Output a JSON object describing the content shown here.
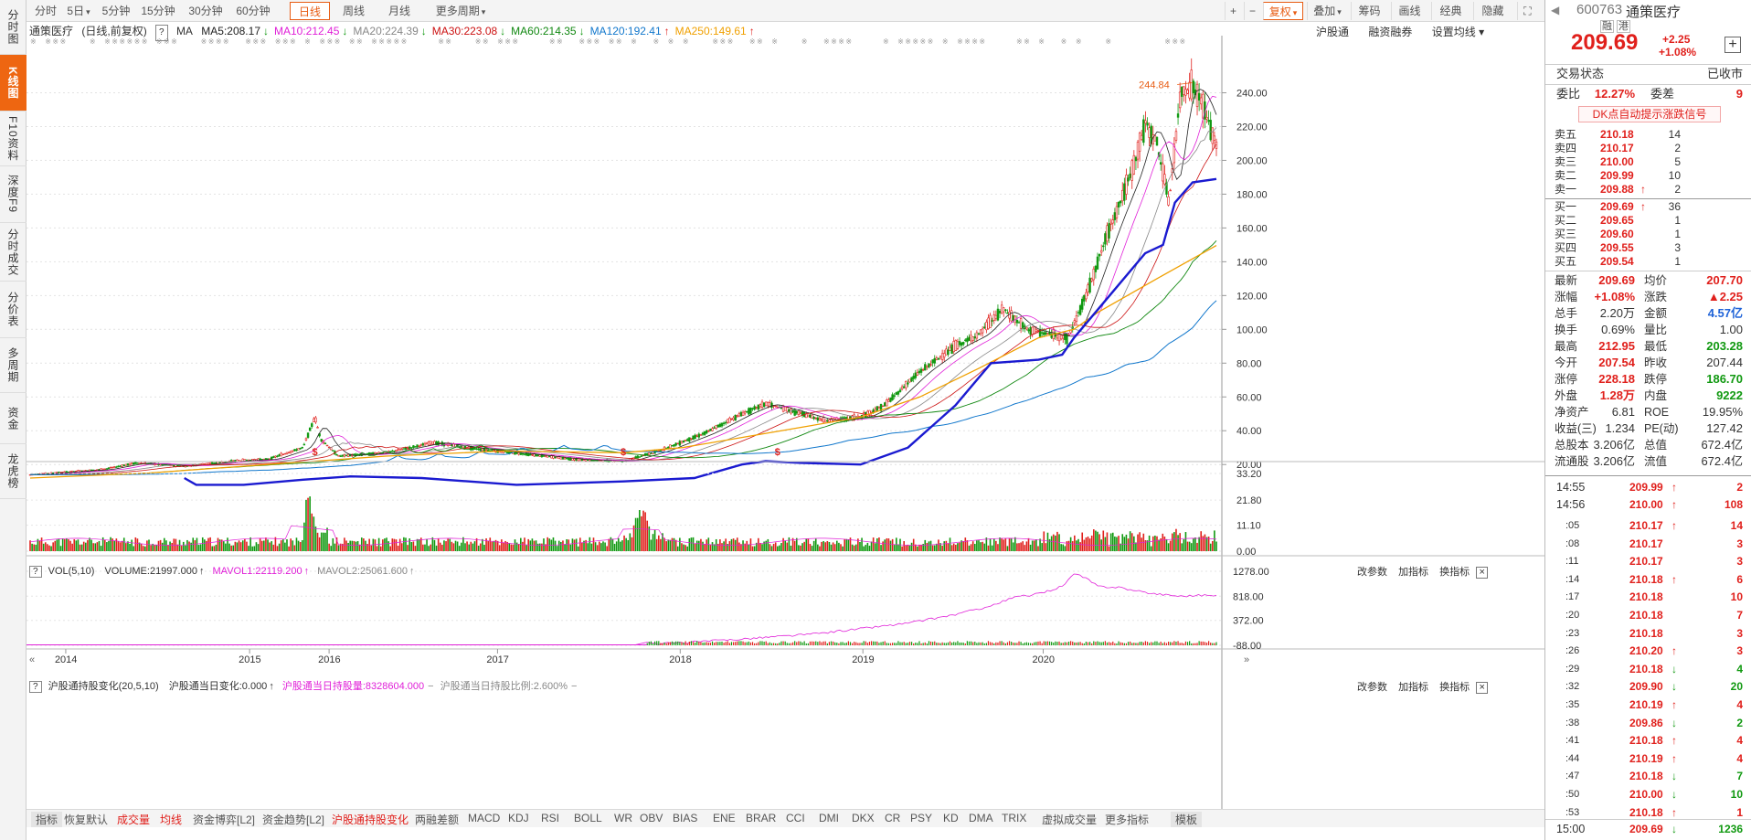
{
  "sidebar": {
    "items": [
      "分时图",
      "K线图",
      "F10资料",
      "深度F9",
      "分时成交",
      "分价表",
      "多周期",
      "资金",
      "龙虎榜"
    ],
    "active_index": 1
  },
  "toolbar": {
    "periods": [
      "分时",
      "5日",
      "5分钟",
      "15分钟",
      "30分钟",
      "60分钟",
      "日线",
      "周线",
      "月线",
      "更多周期"
    ],
    "active_period": "日线",
    "right": [
      "+",
      "−",
      "复权",
      "叠加",
      "筹码",
      "画线",
      "经典",
      "隐藏"
    ]
  },
  "chart_header": {
    "title": "通策医疗",
    "subtitle": "(日线,前复权)",
    "ma_label": "MA",
    "ma": [
      {
        "label": "MA5:208.17",
        "arrow": "down",
        "color": "#222222"
      },
      {
        "label": "MA10:212.45",
        "arrow": "down",
        "color": "#e020d8"
      },
      {
        "label": "MA20:224.39",
        "arrow": "down",
        "color": "#888888"
      },
      {
        "label": "MA30:223.08",
        "arrow": "down",
        "color": "#cc1111"
      },
      {
        "label": "MA60:214.35",
        "arrow": "down",
        "color": "#118811"
      },
      {
        "label": "MA120:192.41",
        "arrow": "up",
        "color": "#1177cc"
      },
      {
        "label": "MA250:149.61",
        "arrow": "up",
        "color": "#f0a000"
      }
    ],
    "links": [
      "沪股通",
      "融资融券",
      "设置均线"
    ]
  },
  "price_axis": [
    "240.00",
    "220.00",
    "200.00",
    "180.00",
    "160.00",
    "140.00",
    "120.00",
    "100.00",
    "80.00",
    "60.00",
    "40.00",
    "20.00"
  ],
  "max_label": "244.84",
  "vol_panel": {
    "title": "VOL(5,10)",
    "v1": "VOLUME:21997.000",
    "v2": "MAVOL1:22119.200",
    "v3": "MAVOL2:25061.600",
    "tools": [
      "改参数",
      "加指标",
      "换指标"
    ],
    "axis": [
      "33.20",
      "21.80",
      "11.10",
      "0.00"
    ]
  },
  "hk_panel": {
    "title": "沪股通持股变化(20,5,10)",
    "v1": "沪股通当日变化:0.000",
    "v2": "沪股通当日持股量:8328604.000",
    "v3": "沪股通当日持股比例:2.600%",
    "tools": [
      "改参数",
      "加指标",
      "换指标"
    ],
    "axis": [
      "1278.00",
      "818.00",
      "372.00",
      "-88.00"
    ]
  },
  "x_axis": [
    "2014",
    "2015",
    "2016",
    "2017",
    "2018",
    "2019",
    "2020"
  ],
  "bottom_tabs": [
    "指标",
    "恢复默认",
    "成交量",
    "均线",
    "资金博弈[L2]",
    "资金趋势[L2]",
    "沪股通持股变化",
    "两融差额",
    "MACD",
    "KDJ",
    "RSI",
    "BOLL",
    "WR",
    "OBV",
    "BIAS",
    "ENE",
    "BRAR",
    "CCI",
    "DMI",
    "DKX",
    "CR",
    "PSY",
    "KD",
    "DMA",
    "TRIX",
    "虚拟成交量",
    "更多指标",
    "模板"
  ],
  "quote": {
    "code": "600763",
    "name": "通策医疗",
    "badges": [
      "融",
      "港"
    ],
    "price": "209.69",
    "change": "+2.25",
    "pct": "+1.08%",
    "status_label": "交易状态",
    "status": "已收市",
    "weibi_label": "委比",
    "weibi": "12.27%",
    "weicha_label": "委差",
    "weicha": "9",
    "dk_link": "DK点自动提示涨跌信号",
    "sells": [
      {
        "label": "卖五",
        "price": "210.18",
        "vol": "14",
        "arrow": ""
      },
      {
        "label": "卖四",
        "price": "210.17",
        "vol": "2",
        "arrow": ""
      },
      {
        "label": "卖三",
        "price": "210.00",
        "vol": "5",
        "arrow": ""
      },
      {
        "label": "卖二",
        "price": "209.99",
        "vol": "10",
        "arrow": ""
      },
      {
        "label": "卖一",
        "price": "209.88",
        "vol": "2",
        "arrow": "↑"
      }
    ],
    "buys": [
      {
        "label": "买一",
        "price": "209.69",
        "vol": "36",
        "arrow": "↑"
      },
      {
        "label": "买二",
        "price": "209.65",
        "vol": "1",
        "arrow": ""
      },
      {
        "label": "买三",
        "price": "209.60",
        "vol": "1",
        "arrow": ""
      },
      {
        "label": "买四",
        "price": "209.55",
        "vol": "3",
        "arrow": ""
      },
      {
        "label": "买五",
        "price": "209.54",
        "vol": "1",
        "arrow": ""
      }
    ],
    "stats": [
      {
        "l1": "最新",
        "v1": "209.69",
        "c1": "red",
        "l2": "均价",
        "v2": "207.70",
        "c2": "red"
      },
      {
        "l1": "涨幅",
        "v1": "+1.08%",
        "c1": "red",
        "l2": "涨跌",
        "v2": "▲2.25",
        "c2": "red"
      },
      {
        "l1": "总手",
        "v1": "2.20万",
        "c1": "",
        "l2": "金额",
        "v2": "4.57亿",
        "c2": "blue"
      },
      {
        "l1": "换手",
        "v1": "0.69%",
        "c1": "",
        "l2": "量比",
        "v2": "1.00",
        "c2": ""
      },
      {
        "l1": "最高",
        "v1": "212.95",
        "c1": "red",
        "l2": "最低",
        "v2": "203.28",
        "c2": "green"
      },
      {
        "l1": "今开",
        "v1": "207.54",
        "c1": "red",
        "l2": "昨收",
        "v2": "207.44",
        "c2": ""
      },
      {
        "l1": "涨停",
        "v1": "228.18",
        "c1": "red",
        "l2": "跌停",
        "v2": "186.70",
        "c2": "green"
      },
      {
        "l1": "外盘",
        "v1": "1.28万",
        "c1": "red",
        "l2": "内盘",
        "v2": "9222",
        "c2": "green"
      },
      {
        "l1": "净资产",
        "v1": "6.81",
        "c1": "",
        "l2": "ROE",
        "v2": "19.95%",
        "c2": ""
      },
      {
        "l1": "收益(三)",
        "v1": "1.234",
        "c1": "",
        "l2": "PE(动)",
        "v2": "127.42",
        "c2": ""
      },
      {
        "l1": "总股本",
        "v1": "3.206亿",
        "c1": "",
        "l2": "总值",
        "v2": "672.4亿",
        "c2": ""
      },
      {
        "l1": "流通股",
        "v1": "3.206亿",
        "c1": "",
        "l2": "流值",
        "v2": "672.4亿",
        "c2": ""
      }
    ],
    "trades": [
      {
        "t": "14:55",
        "p": "209.99",
        "a": "↑",
        "q": "2",
        "qc": "red"
      },
      {
        "t": "14:56",
        "p": "210.00",
        "a": "↑",
        "q": "108",
        "qc": "red"
      },
      {
        "t": ":05",
        "p": "210.17",
        "a": "↑",
        "q": "14",
        "qc": "red"
      },
      {
        "t": ":08",
        "p": "210.17",
        "a": "",
        "q": "3",
        "qc": "red"
      },
      {
        "t": ":11",
        "p": "210.17",
        "a": "",
        "q": "3",
        "qc": "red"
      },
      {
        "t": ":14",
        "p": "210.18",
        "a": "↑",
        "q": "6",
        "qc": "red"
      },
      {
        "t": ":17",
        "p": "210.18",
        "a": "",
        "q": "10",
        "qc": "red"
      },
      {
        "t": ":20",
        "p": "210.18",
        "a": "",
        "q": "7",
        "qc": "red"
      },
      {
        "t": ":23",
        "p": "210.18",
        "a": "",
        "q": "3",
        "qc": "red"
      },
      {
        "t": ":26",
        "p": "210.20",
        "a": "↑",
        "q": "3",
        "qc": "red"
      },
      {
        "t": ":29",
        "p": "210.18",
        "a": "↓",
        "q": "4",
        "qc": "green"
      },
      {
        "t": ":32",
        "p": "209.90",
        "a": "↓",
        "q": "20",
        "qc": "green"
      },
      {
        "t": ":35",
        "p": "210.19",
        "a": "↑",
        "q": "4",
        "qc": "red"
      },
      {
        "t": ":38",
        "p": "209.86",
        "a": "↓",
        "q": "2",
        "qc": "green"
      },
      {
        "t": ":41",
        "p": "210.18",
        "a": "↑",
        "q": "4",
        "qc": "red"
      },
      {
        "t": ":44",
        "p": "210.19",
        "a": "↑",
        "q": "4",
        "qc": "red"
      },
      {
        "t": ":47",
        "p": "210.18",
        "a": "↓",
        "q": "7",
        "qc": "green"
      },
      {
        "t": ":50",
        "p": "210.00",
        "a": "↓",
        "q": "10",
        "qc": "green"
      },
      {
        "t": ":53",
        "p": "210.18",
        "a": "↑",
        "q": "1",
        "qc": "red"
      },
      {
        "t": "15:00",
        "p": "209.69",
        "a": "↓",
        "q": "1236",
        "qc": "green"
      }
    ]
  },
  "chart_data": {
    "type": "line",
    "title": "",
    "xlabel": "",
    "ylabel": "",
    "x_ticks": [
      "2014",
      "2015",
      "2016",
      "2017",
      "2018",
      "2019",
      "2020"
    ],
    "ylim": [
      12,
      250
    ],
    "max_marked": 244.84,
    "note_x_fraction": "x values are fractions of the time span, 2014-01 to 2020-09, read off the x-axis",
    "series": [
      {
        "name": "K线(收盘近似)",
        "color": "#cc2222",
        "points": [
          [
            0.0,
            14
          ],
          [
            0.06,
            17
          ],
          [
            0.09,
            21
          ],
          [
            0.13,
            19
          ],
          [
            0.17,
            22
          ],
          [
            0.2,
            23
          ],
          [
            0.23,
            30
          ],
          [
            0.24,
            48
          ],
          [
            0.245,
            35
          ],
          [
            0.26,
            25
          ],
          [
            0.3,
            27
          ],
          [
            0.34,
            33
          ],
          [
            0.38,
            29
          ],
          [
            0.42,
            26
          ],
          [
            0.46,
            23
          ],
          [
            0.5,
            22
          ],
          [
            0.53,
            28
          ],
          [
            0.57,
            39
          ],
          [
            0.6,
            50
          ],
          [
            0.62,
            56
          ],
          [
            0.64,
            52
          ],
          [
            0.67,
            46
          ],
          [
            0.7,
            48
          ],
          [
            0.72,
            55
          ],
          [
            0.75,
            75
          ],
          [
            0.78,
            90
          ],
          [
            0.8,
            97
          ],
          [
            0.82,
            112
          ],
          [
            0.84,
            100
          ],
          [
            0.86,
            97
          ],
          [
            0.875,
            95
          ],
          [
            0.89,
            120
          ],
          [
            0.91,
            160
          ],
          [
            0.93,
            195
          ],
          [
            0.94,
            222
          ],
          [
            0.95,
            210
          ],
          [
            0.96,
            175
          ],
          [
            0.97,
            240
          ],
          [
            0.98,
            244
          ],
          [
            0.99,
            230
          ],
          [
            1.0,
            208
          ]
        ]
      },
      {
        "name": "MA250",
        "color": "#f0a000",
        "points": [
          [
            0.0,
            12
          ],
          [
            0.1,
            15
          ],
          [
            0.2,
            20
          ],
          [
            0.3,
            25
          ],
          [
            0.4,
            28
          ],
          [
            0.5,
            27
          ],
          [
            0.55,
            30
          ],
          [
            0.6,
            36
          ],
          [
            0.65,
            42
          ],
          [
            0.7,
            48
          ],
          [
            0.75,
            60
          ],
          [
            0.8,
            77
          ],
          [
            0.85,
            95
          ],
          [
            0.88,
            100
          ],
          [
            0.9,
            110
          ],
          [
            0.95,
            130
          ],
          [
            1.0,
            149.61
          ]
        ]
      },
      {
        "name": "蓝色粗线",
        "color": "#1a1ad0",
        "points": [
          [
            0.13,
            12
          ],
          [
            0.14,
            8
          ],
          [
            0.18,
            8
          ],
          [
            0.23,
            11
          ],
          [
            0.27,
            13
          ],
          [
            0.33,
            12
          ],
          [
            0.41,
            8
          ],
          [
            0.5,
            10
          ],
          [
            0.56,
            12
          ],
          [
            0.6,
            20
          ],
          [
            0.62,
            22
          ],
          [
            0.65,
            21
          ],
          [
            0.7,
            20
          ],
          [
            0.74,
            30
          ],
          [
            0.78,
            55
          ],
          [
            0.81,
            80
          ],
          [
            0.85,
            82
          ],
          [
            0.87,
            85
          ],
          [
            0.88,
            95
          ],
          [
            0.91,
            120
          ],
          [
            0.94,
            145
          ],
          [
            0.955,
            150
          ],
          [
            0.965,
            175
          ],
          [
            0.98,
            187
          ],
          [
            1.0,
            189
          ]
        ]
      }
    ],
    "volume_ylim": [
      0,
      33.2
    ],
    "hk_ylim": [
      -88,
      1278
    ]
  }
}
